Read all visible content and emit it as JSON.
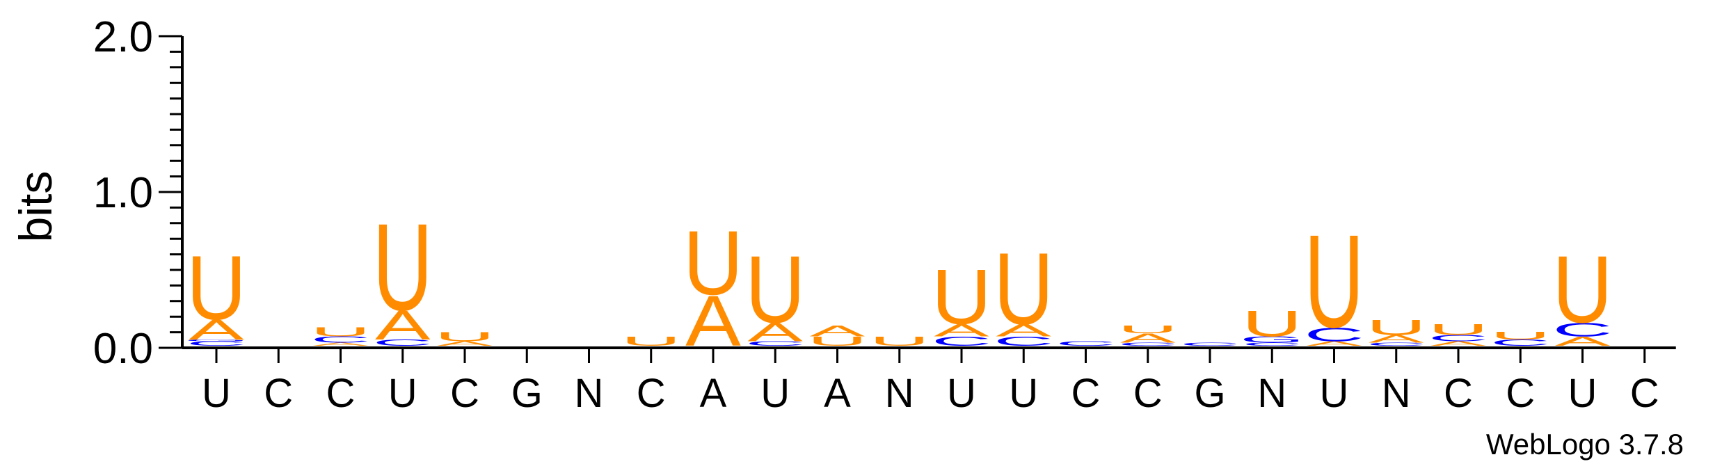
{
  "chart_data": {
    "type": "sequence-logo",
    "ylabel": "bits",
    "ylim": [
      0,
      2
    ],
    "y_ticks": [
      "0.0",
      "1.0",
      "2.0"
    ],
    "credit": "WebLogo 3.7.8",
    "colors": {
      "A": "#ff8c00",
      "U": "#ff8c00",
      "C": "#0000ff",
      "G": "#0000ff"
    },
    "positions": [
      {
        "label": "U",
        "stack": [
          {
            "letter": "C",
            "bits": 0.03
          },
          {
            "letter": "G",
            "bits": 0.01
          },
          {
            "letter": "A",
            "bits": 0.13
          },
          {
            "letter": "U",
            "bits": 0.42
          }
        ]
      },
      {
        "label": "C",
        "stack": []
      },
      {
        "label": "C",
        "stack": [
          {
            "letter": "A",
            "bits": 0.02
          },
          {
            "letter": "C",
            "bits": 0.04
          },
          {
            "letter": "U",
            "bits": 0.06
          }
        ]
      },
      {
        "label": "U",
        "stack": [
          {
            "letter": "C",
            "bits": 0.04
          },
          {
            "letter": "A",
            "bits": 0.19
          },
          {
            "letter": "U",
            "bits": 0.57
          }
        ]
      },
      {
        "label": "C",
        "stack": [
          {
            "letter": "A",
            "bits": 0.03
          },
          {
            "letter": "U",
            "bits": 0.06
          }
        ]
      },
      {
        "label": "G",
        "stack": []
      },
      {
        "label": "N",
        "stack": []
      },
      {
        "label": "C",
        "stack": [
          {
            "letter": "U",
            "bits": 0.06
          }
        ]
      },
      {
        "label": "A",
        "stack": [
          {
            "letter": "A",
            "bits": 0.33
          },
          {
            "letter": "U",
            "bits": 0.42
          }
        ]
      },
      {
        "label": "U",
        "stack": [
          {
            "letter": "C",
            "bits": 0.03
          },
          {
            "letter": "A",
            "bits": 0.12
          },
          {
            "letter": "U",
            "bits": 0.44
          }
        ]
      },
      {
        "label": "A",
        "stack": [
          {
            "letter": "U",
            "bits": 0.06
          },
          {
            "letter": "A",
            "bits": 0.07
          }
        ]
      },
      {
        "label": "N",
        "stack": [
          {
            "letter": "U",
            "bits": 0.06
          }
        ]
      },
      {
        "label": "U",
        "stack": [
          {
            "letter": "C",
            "bits": 0.06
          },
          {
            "letter": "A",
            "bits": 0.08
          },
          {
            "letter": "U",
            "bits": 0.36
          }
        ]
      },
      {
        "label": "U",
        "stack": [
          {
            "letter": "C",
            "bits": 0.06
          },
          {
            "letter": "A",
            "bits": 0.08
          },
          {
            "letter": "U",
            "bits": 0.47
          }
        ]
      },
      {
        "label": "C",
        "stack": [
          {
            "letter": "C",
            "bits": 0.03
          }
        ]
      },
      {
        "label": "C",
        "stack": [
          {
            "letter": "C",
            "bits": 0.02
          },
          {
            "letter": "A",
            "bits": 0.06
          },
          {
            "letter": "U",
            "bits": 0.05
          }
        ]
      },
      {
        "label": "G",
        "stack": [
          {
            "letter": "C",
            "bits": 0.02
          }
        ]
      },
      {
        "label": "N",
        "stack": [
          {
            "letter": "C",
            "bits": 0.02
          },
          {
            "letter": "G",
            "bits": 0.04
          },
          {
            "letter": "U",
            "bits": 0.17
          }
        ]
      },
      {
        "label": "U",
        "stack": [
          {
            "letter": "A",
            "bits": 0.03
          },
          {
            "letter": "C",
            "bits": 0.09
          },
          {
            "letter": "U",
            "bits": 0.61
          }
        ]
      },
      {
        "label": "N",
        "stack": [
          {
            "letter": "C",
            "bits": 0.02
          },
          {
            "letter": "A",
            "bits": 0.05
          },
          {
            "letter": "U",
            "bits": 0.1
          }
        ]
      },
      {
        "label": "C",
        "stack": [
          {
            "letter": "A",
            "bits": 0.03
          },
          {
            "letter": "C",
            "bits": 0.04
          },
          {
            "letter": "U",
            "bits": 0.07
          }
        ]
      },
      {
        "label": "C",
        "stack": [
          {
            "letter": "C",
            "bits": 0.04
          },
          {
            "letter": "U",
            "bits": 0.05
          }
        ]
      },
      {
        "label": "U",
        "stack": [
          {
            "letter": "A",
            "bits": 0.06
          },
          {
            "letter": "C",
            "bits": 0.09
          },
          {
            "letter": "U",
            "bits": 0.44
          }
        ]
      },
      {
        "label": "C",
        "stack": []
      }
    ]
  }
}
